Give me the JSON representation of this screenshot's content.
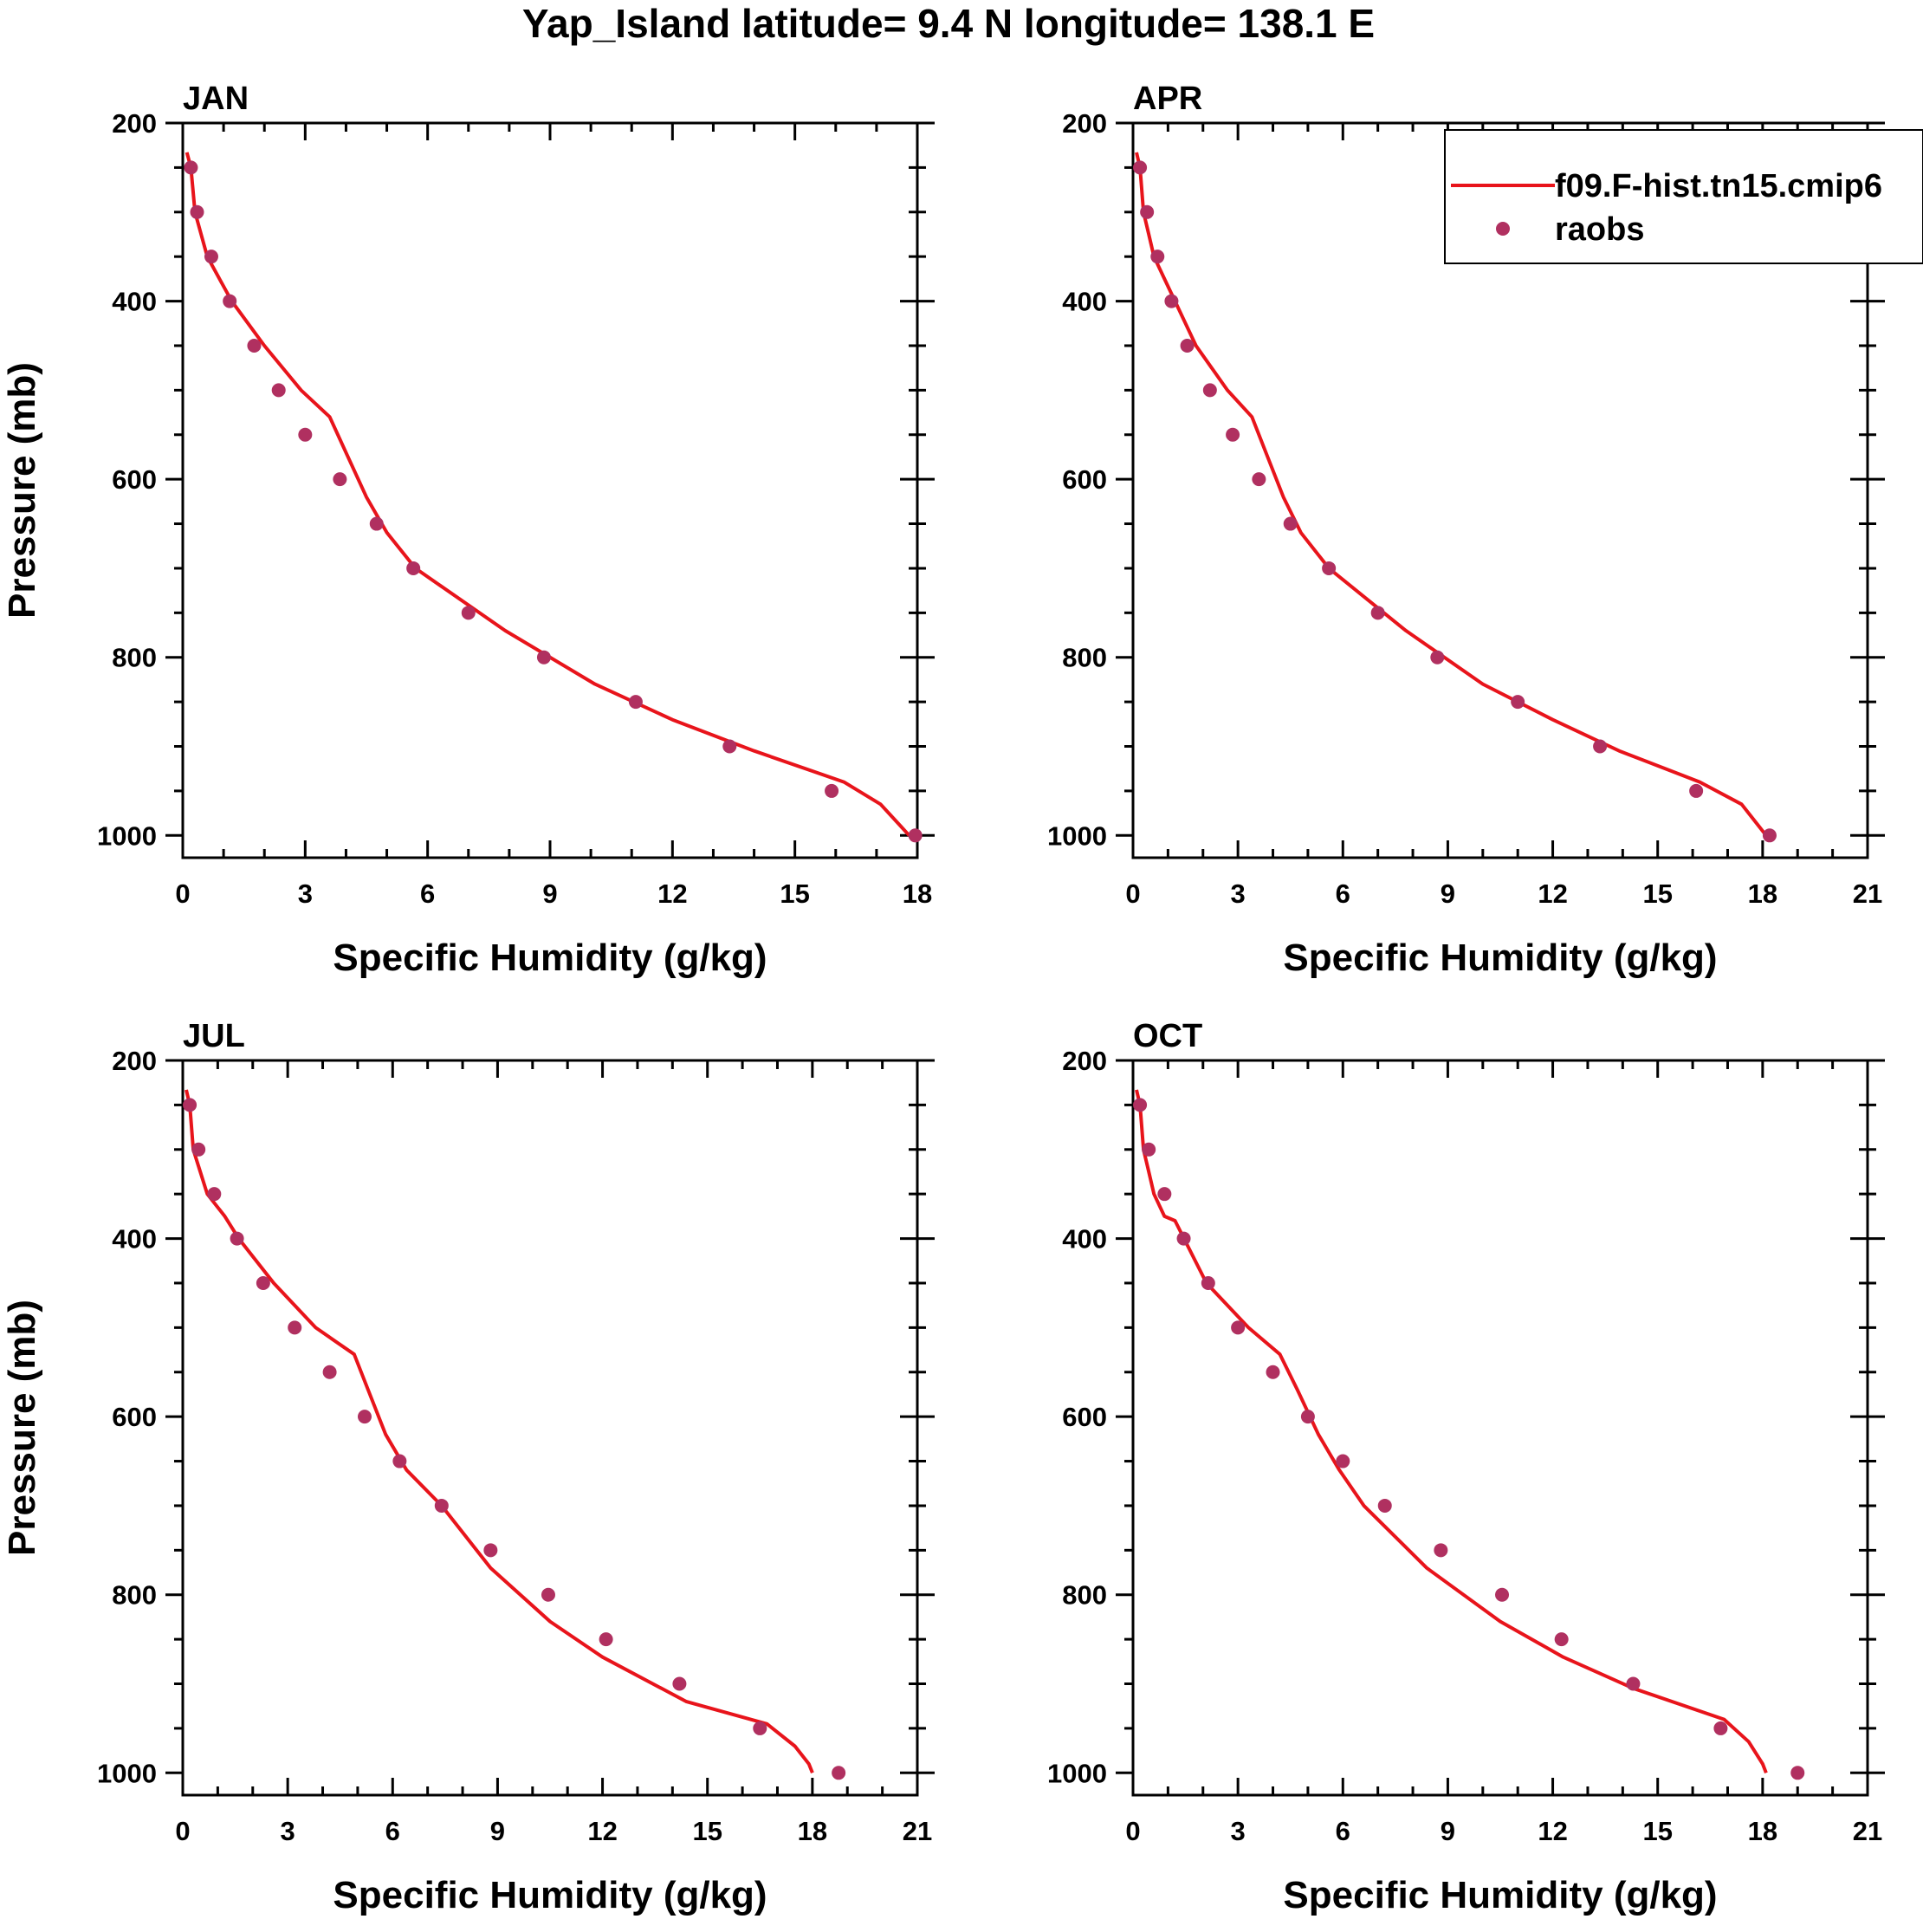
{
  "figure": {
    "title": "Yap_Island  latitude= 9.4 N longitude= 138.1 E",
    "colors": {
      "model": "#e8141b",
      "obs": "#b03060",
      "axis": "#000000",
      "background": "#ffffff"
    }
  },
  "legend": {
    "placement": "top-right of APR panel",
    "entries": [
      {
        "label": "f09.F-hist.tn15.cmip6",
        "marker": "line",
        "color": "#e8141b"
      },
      {
        "label": "raobs",
        "marker": "dot",
        "color": "#b03060"
      }
    ]
  },
  "chart_data": [
    {
      "type": "line",
      "panel_title": "JAN",
      "xlabel": "Specific Humidity (g/kg)",
      "ylabel": "Pressure (mb)",
      "xlim": [
        0,
        18
      ],
      "ylim": [
        200,
        1025
      ],
      "y_inverted": true,
      "xticks": [
        "0",
        "3",
        "6",
        "9",
        "12",
        "15",
        "18"
      ],
      "yticks": [
        "200",
        "400",
        "600",
        "800",
        "1000"
      ],
      "series": [
        {
          "name": "f09.F-hist.tn15.cmip6",
          "style": "line",
          "x": [
            0.1,
            0.2,
            0.3,
            0.45,
            0.6,
            0.9,
            1.2,
            2.0,
            2.9,
            3.6,
            4.0,
            4.5,
            5.0,
            5.7,
            7.9,
            10.1,
            12.0,
            14.0,
            16.2,
            17.1,
            17.6,
            17.8
          ],
          "y": [
            233,
            250,
            300,
            325,
            350,
            375,
            400,
            450,
            500,
            530,
            570,
            620,
            660,
            700,
            770,
            830,
            870,
            905,
            940,
            965,
            990,
            1000
          ]
        },
        {
          "name": "raobs",
          "style": "scatter",
          "x": [
            0.2,
            0.35,
            0.7,
            1.15,
            1.75,
            2.35,
            3.0,
            3.85,
            4.75,
            5.65,
            7.0,
            8.85,
            11.1,
            13.4,
            15.9,
            17.95
          ],
          "y": [
            250,
            300,
            350,
            400,
            450,
            500,
            550,
            600,
            650,
            700,
            750,
            800,
            850,
            900,
            950,
            1000
          ]
        }
      ]
    },
    {
      "type": "line",
      "panel_title": "APR",
      "xlabel": "Specific Humidity (g/kg)",
      "ylabel": "",
      "xlim": [
        0,
        21
      ],
      "ylim": [
        200,
        1025
      ],
      "y_inverted": true,
      "xticks": [
        "0",
        "3",
        "6",
        "9",
        "12",
        "15",
        "18",
        "21"
      ],
      "yticks": [
        "200",
        "400",
        "600",
        "800",
        "1000"
      ],
      "series": [
        {
          "name": "f09.F-hist.tn15.cmip6",
          "style": "line",
          "x": [
            0.1,
            0.2,
            0.3,
            0.45,
            0.6,
            0.9,
            1.2,
            1.8,
            2.7,
            3.4,
            3.8,
            4.3,
            4.8,
            5.6,
            7.8,
            10.0,
            12.0,
            13.9,
            16.2,
            17.4,
            17.9,
            18.1
          ],
          "y": [
            233,
            250,
            300,
            325,
            350,
            375,
            400,
            450,
            500,
            530,
            570,
            620,
            660,
            700,
            770,
            830,
            870,
            905,
            940,
            965,
            990,
            1000
          ]
        },
        {
          "name": "raobs",
          "style": "scatter",
          "x": [
            0.2,
            0.4,
            0.7,
            1.1,
            1.55,
            2.2,
            2.85,
            3.6,
            4.5,
            5.6,
            7.0,
            8.7,
            11.0,
            13.35,
            16.1,
            18.2
          ],
          "y": [
            250,
            300,
            350,
            400,
            450,
            500,
            550,
            600,
            650,
            700,
            750,
            800,
            850,
            900,
            950,
            1000
          ]
        }
      ]
    },
    {
      "type": "line",
      "panel_title": "JUL",
      "xlabel": "Specific Humidity (g/kg)",
      "ylabel": "Pressure (mb)",
      "xlim": [
        0,
        21
      ],
      "ylim": [
        200,
        1025
      ],
      "y_inverted": true,
      "xticks": [
        "0",
        "3",
        "6",
        "9",
        "12",
        "15",
        "18",
        "21"
      ],
      "yticks": [
        "200",
        "400",
        "600",
        "800",
        "1000"
      ],
      "series": [
        {
          "name": "f09.F-hist.tn15.cmip6",
          "style": "line",
          "x": [
            0.1,
            0.2,
            0.3,
            0.5,
            0.7,
            1.2,
            1.6,
            2.6,
            3.8,
            4.9,
            5.3,
            5.8,
            6.4,
            7.4,
            8.8,
            10.5,
            12.0,
            14.4,
            16.7,
            17.5,
            17.9,
            18.0
          ],
          "y": [
            233,
            250,
            300,
            325,
            350,
            375,
            400,
            450,
            500,
            530,
            570,
            620,
            660,
            700,
            770,
            830,
            870,
            920,
            945,
            970,
            990,
            1000
          ]
        },
        {
          "name": "raobs",
          "style": "scatter",
          "x": [
            0.2,
            0.45,
            0.9,
            1.55,
            2.3,
            3.2,
            4.2,
            5.2,
            6.2,
            7.4,
            8.8,
            10.45,
            12.1,
            14.2,
            16.5,
            18.75
          ],
          "y": [
            250,
            300,
            350,
            400,
            450,
            500,
            550,
            600,
            650,
            700,
            750,
            800,
            850,
            900,
            950,
            1000
          ]
        }
      ]
    },
    {
      "type": "line",
      "panel_title": "OCT",
      "xlabel": "Specific Humidity (g/kg)",
      "ylabel": "",
      "xlim": [
        0,
        21
      ],
      "ylim": [
        200,
        1025
      ],
      "y_inverted": true,
      "xticks": [
        "0",
        "3",
        "6",
        "9",
        "12",
        "15",
        "18",
        "21"
      ],
      "yticks": [
        "200",
        "400",
        "600",
        "800",
        "1000"
      ],
      "series": [
        {
          "name": "f09.F-hist.tn15.cmip6",
          "style": "line",
          "x": [
            0.1,
            0.2,
            0.3,
            0.45,
            0.6,
            0.9,
            1.2,
            2.1,
            3.3,
            4.2,
            4.7,
            5.3,
            5.9,
            6.6,
            8.4,
            10.5,
            12.3,
            14.3,
            16.9,
            17.6,
            18.0,
            18.1
          ],
          "y": [
            233,
            250,
            300,
            325,
            350,
            375,
            380,
            450,
            500,
            530,
            570,
            620,
            660,
            700,
            770,
            830,
            870,
            905,
            940,
            965,
            990,
            1000
          ]
        },
        {
          "name": "raobs",
          "style": "scatter",
          "x": [
            0.2,
            0.45,
            0.9,
            1.45,
            2.15,
            3.0,
            4.0,
            5.0,
            6.0,
            7.2,
            8.8,
            10.55,
            12.25,
            14.3,
            16.8,
            19.0
          ],
          "y": [
            250,
            300,
            350,
            400,
            450,
            500,
            550,
            600,
            650,
            700,
            750,
            800,
            850,
            900,
            950,
            1000
          ]
        }
      ]
    }
  ]
}
